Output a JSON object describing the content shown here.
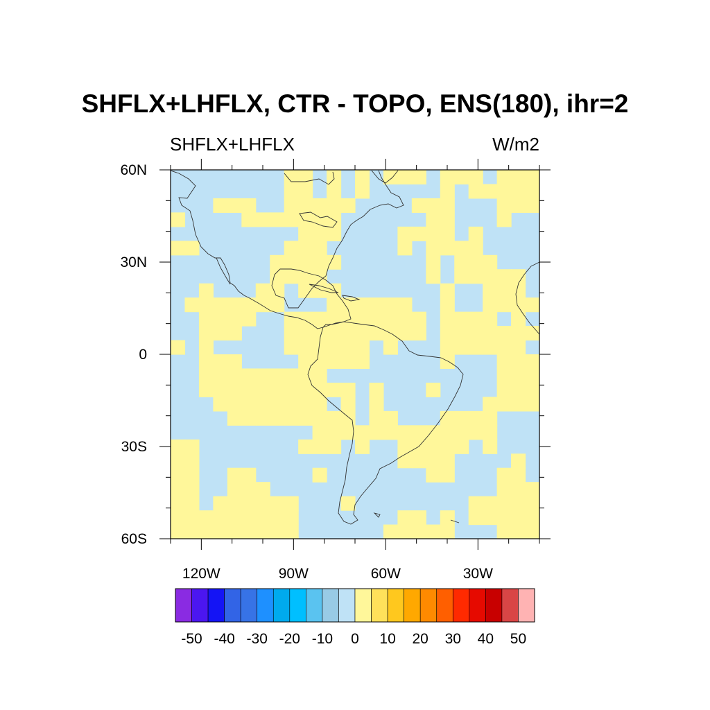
{
  "title": "SHFLX+LHFLX, CTR - TOPO, ENS(180), ihr=2",
  "left_string": "SHFLX+LHFLX",
  "right_string": "W/m2",
  "chart_data": {
    "type": "heatmap",
    "lon_range": [
      -130,
      -10
    ],
    "lat_range": [
      -60,
      60
    ],
    "lat_ticks": [
      {
        "value": 60,
        "label": "60N"
      },
      {
        "value": 30,
        "label": "30N"
      },
      {
        "value": 0,
        "label": "0"
      },
      {
        "value": -30,
        "label": "30S"
      },
      {
        "value": -60,
        "label": "60S"
      }
    ],
    "lon_ticks": [
      {
        "value": -120,
        "label": "120W"
      },
      {
        "value": -90,
        "label": "90W"
      },
      {
        "value": -60,
        "label": "60W"
      },
      {
        "value": -30,
        "label": "30W"
      }
    ],
    "colorbar": {
      "levels": [
        -50,
        -45,
        -40,
        -35,
        -30,
        -25,
        -20,
        -15,
        -10,
        -5,
        0,
        5,
        10,
        15,
        20,
        25,
        30,
        35,
        40,
        45,
        50
      ],
      "labels": [
        "-50",
        "-40",
        "-30",
        "-20",
        "-10",
        "0",
        "10",
        "20",
        "30",
        "40",
        "50"
      ],
      "colors": [
        "#8a2be2",
        "#4b16f0",
        "#1414f5",
        "#3264e6",
        "#3773e6",
        "#1e90ff",
        "#00aaee",
        "#00bfff",
        "#5ac3f0",
        "#98cbe6",
        "#bfe2f6",
        "#fff79a",
        "#ffe15a",
        "#ffc81e",
        "#ffa800",
        "#ff8a00",
        "#ff5f00",
        "#ff2a00",
        "#e60a00",
        "#c80000",
        "#d94545",
        "#ffb3b3"
      ]
    },
    "field_colors": {
      "negative": "#bfe2f6",
      "positive": "#fff79a"
    }
  }
}
